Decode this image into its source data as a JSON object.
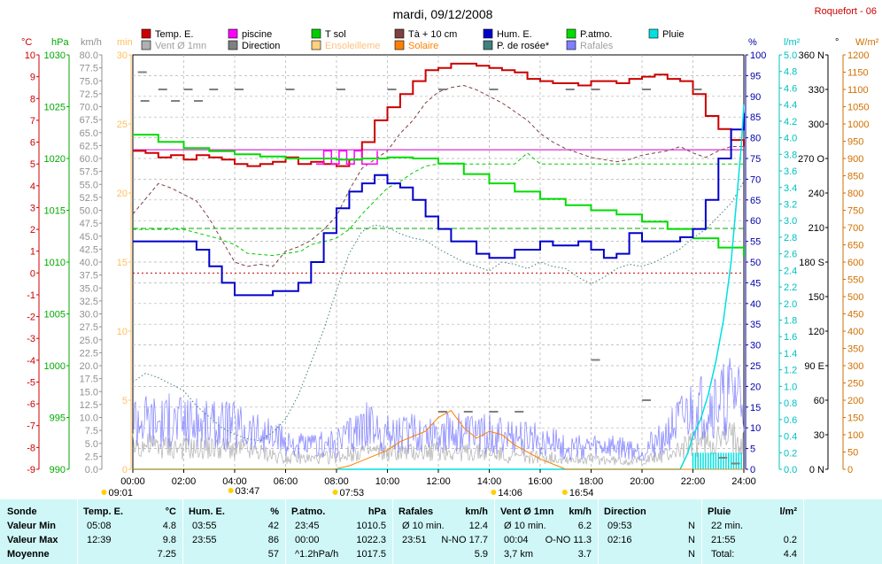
{
  "title": "mardi, 09/12/2008",
  "site": "Roquefort - 06",
  "legend": [
    {
      "label": "Temp. E.",
      "color": "#cc0000",
      "row": 0,
      "col": 0
    },
    {
      "label": "piscine",
      "color": "#ff00ff",
      "row": 0,
      "col": 1
    },
    {
      "label": "T sol",
      "color": "#00cc00",
      "row": 0,
      "col": 2
    },
    {
      "label": "Tà + 10 cm",
      "color": "#804040",
      "row": 0,
      "col": 3
    },
    {
      "label": "Hum. E.",
      "color": "#0000cc",
      "row": 0,
      "col": 4
    },
    {
      "label": "P.atmo.",
      "color": "#00dd00",
      "row": 0,
      "col": 5
    },
    {
      "label": "Pluie",
      "color": "#00e0e0",
      "row": 0,
      "col": 6
    },
    {
      "label": "Vent Ø 1mn",
      "color": "#b0b0b0",
      "row": 1,
      "col": 0
    },
    {
      "label": "Direction",
      "color": "#808080",
      "row": 1,
      "col": 1
    },
    {
      "label": "Ensoleilleme",
      "color": "#ffd080",
      "row": 1,
      "col": 2
    },
    {
      "label": "Solaire",
      "color": "#ff8000",
      "row": 1,
      "col": 3
    },
    {
      "label": "P. de rosée*",
      "color": "#408080",
      "row": 1,
      "col": 4
    },
    {
      "label": "Rafales",
      "color": "#8080ff",
      "row": 1,
      "col": 5
    }
  ],
  "axes": {
    "temp": {
      "unit": "°C",
      "color": "#cc0000",
      "min": -9,
      "max": 10,
      "step": 1
    },
    "pressure": {
      "unit": "hPa",
      "color": "#00aa00",
      "min": 990,
      "max": 1030,
      "step": 5
    },
    "wind": {
      "unit": "km/h",
      "color": "#909090",
      "min": 0,
      "max": 80,
      "step": 2.5
    },
    "minutes": {
      "unit": "min",
      "color": "#ffc060",
      "min": 0,
      "max": 30,
      "step": 5
    },
    "humidity": {
      "unit": "%",
      "color": "#0000aa",
      "min": 0,
      "max": 100,
      "step": 5
    },
    "rain": {
      "unit": "l/m²",
      "color": "#00c0c0",
      "min": 0,
      "max": 5,
      "step": 0.2
    },
    "direction": {
      "unit": "°",
      "color": "#000000",
      "min": 0,
      "max": 360,
      "step": 30,
      "labels": {
        "0": "N",
        "90": "E",
        "180": "S",
        "270": "O",
        "360": "N"
      }
    },
    "solar": {
      "unit": "W/m²",
      "color": "#d07000",
      "min": 0,
      "max": 1200,
      "step": 50
    }
  },
  "x_ticks": [
    "00:00",
    "02:00",
    "04:00",
    "06:00",
    "08:00",
    "10:00",
    "12:00",
    "14:00",
    "16:00",
    "18:00",
    "20:00",
    "22:00",
    "24:00"
  ],
  "sun_marks": [
    {
      "label": "09:01",
      "hour": -1.2,
      "row": "below"
    },
    {
      "label": "03:47",
      "hour": 3.78,
      "row": "above"
    },
    {
      "label": "07:53",
      "hour": 7.88,
      "row": "below"
    },
    {
      "label": "14:06",
      "hour": 14.1,
      "row": "below"
    },
    {
      "label": "16:54",
      "hour": 16.9,
      "row": "below"
    }
  ],
  "chart_data": {
    "type": "line",
    "title": "mardi, 09/12/2008",
    "x_unit": "hour",
    "xlim": [
      0,
      24
    ],
    "grid": true,
    "reference_lines": [
      {
        "axis": "temp",
        "value": 0,
        "color": "#cc0000",
        "style": "dotted"
      },
      {
        "axis": "pressure",
        "value": 1013.25,
        "color": "#00aa00",
        "style": "dashed"
      },
      {
        "axis": "temp",
        "value": 5.65,
        "color": "#cc00cc",
        "style": "solid"
      }
    ],
    "series": [
      {
        "name": "Temp. E.",
        "axis": "temp",
        "color": "#cc0000",
        "width": 2,
        "style": "step",
        "x": [
          0,
          0.5,
          1,
          1.5,
          2,
          2.5,
          3,
          3.5,
          4,
          4.5,
          5,
          5.5,
          6,
          6.5,
          7,
          7.5,
          8,
          8.5,
          9,
          9.5,
          10,
          10.5,
          11,
          11.5,
          12,
          12.5,
          13,
          13.5,
          14,
          14.5,
          15,
          15.5,
          16,
          16.5,
          17,
          17.5,
          18,
          18.5,
          19,
          19.5,
          20,
          20.5,
          21,
          21.5,
          22,
          22.5,
          23,
          23.5,
          24
        ],
        "y": [
          5.6,
          5.5,
          5.3,
          5.4,
          5.2,
          5.4,
          5.3,
          5.2,
          5.0,
          4.9,
          5.0,
          5.1,
          5.3,
          5.0,
          5.1,
          5.0,
          4.9,
          5.2,
          6.0,
          7.0,
          7.6,
          8.2,
          8.8,
          9.3,
          9.4,
          9.6,
          9.6,
          9.5,
          9.4,
          9.3,
          9.2,
          8.9,
          8.8,
          8.7,
          8.7,
          8.6,
          8.8,
          8.8,
          8.7,
          8.9,
          9.0,
          9.1,
          8.9,
          8.8,
          8.2,
          7.2,
          6.6,
          6.1,
          5.8
        ]
      },
      {
        "name": "Tà + 10 cm",
        "axis": "temp",
        "color": "#804040",
        "width": 1,
        "style": "dashed",
        "x": [
          0,
          0.5,
          1,
          1.5,
          2,
          2.5,
          3,
          3.5,
          4,
          4.5,
          5,
          5.5,
          6,
          6.5,
          7,
          7.5,
          8,
          8.5,
          9,
          9.5,
          10,
          10.5,
          11,
          11.5,
          12,
          12.5,
          13,
          13.5,
          14,
          14.5,
          15,
          15.5,
          16,
          16.5,
          17,
          17.5,
          18,
          18.5,
          19,
          19.5,
          20,
          20.5,
          21,
          21.5,
          22,
          22.5,
          23,
          23.5,
          24
        ],
        "y": [
          2.7,
          3.4,
          4.1,
          3.9,
          3.6,
          3.3,
          2.5,
          1.5,
          0.5,
          0.3,
          0.4,
          0.3,
          1.0,
          1.2,
          1.5,
          2.0,
          2.6,
          3.8,
          4.8,
          5.2,
          5.6,
          6.4,
          7.0,
          7.8,
          8.3,
          8.5,
          8.6,
          8.4,
          8.1,
          7.8,
          7.4,
          7.0,
          6.4,
          6.0,
          5.7,
          5.5,
          5.3,
          5.2,
          5.1,
          5.2,
          5.4,
          5.5,
          5.6,
          5.8,
          5.5,
          5.3,
          5.6,
          5.8,
          5.8
        ]
      },
      {
        "name": "piscine",
        "axis": "temp",
        "color": "#ff00ff",
        "width": 1.5,
        "style": "step",
        "x": [
          7.2,
          7.5,
          7.8,
          8.1,
          8.4,
          8.7,
          9.0,
          9.3,
          9.6
        ],
        "y": [
          5.0,
          5.6,
          5.0,
          5.6,
          5.0,
          5.6,
          5.0,
          5.0,
          5.6
        ]
      },
      {
        "name": "T sol",
        "axis": "temp",
        "color": "#00cc00",
        "width": 1,
        "style": "dashed",
        "x": [
          0,
          2,
          3.3,
          4,
          4.5,
          5.5,
          6.6,
          7,
          7.7,
          8,
          8.5,
          9,
          9.5,
          10,
          10.5,
          11,
          11.5,
          12,
          14,
          15,
          15.5,
          16,
          24
        ],
        "y": [
          2.0,
          2.0,
          1.6,
          1.3,
          0.9,
          0.8,
          1.0,
          1.3,
          1.5,
          1.6,
          2.0,
          2.7,
          3.3,
          3.9,
          4.2,
          4.6,
          4.9,
          5.0,
          5.0,
          5.0,
          5.5,
          5.0,
          5.0
        ]
      },
      {
        "name": "P. de rosée*",
        "axis": "temp",
        "color": "#408080",
        "width": 1,
        "style": "dotted",
        "x": [
          0,
          0.5,
          1,
          1.5,
          2,
          2.5,
          3,
          3.5,
          4,
          4.5,
          5,
          5.5,
          6,
          6.5,
          7,
          7.5,
          8,
          8.5,
          9,
          9.5,
          10,
          10.5,
          11,
          11.5,
          12,
          12.5,
          13,
          13.5,
          14,
          14.5,
          15,
          15.5,
          16,
          16.5,
          17,
          17.5,
          18,
          18.5,
          19,
          19.5,
          20,
          20.5,
          21,
          21.5,
          22,
          22.5,
          23,
          23.5,
          24
        ],
        "y": [
          -5.0,
          -4.6,
          -4.8,
          -5.1,
          -5.4,
          -6.1,
          -6.6,
          -7.1,
          -7.4,
          -7.6,
          -7.7,
          -7.3,
          -6.7,
          -5.6,
          -4.1,
          -2.6,
          -0.8,
          0.9,
          1.9,
          2.2,
          2.1,
          1.8,
          1.6,
          1.5,
          1.1,
          0.8,
          0.5,
          0.3,
          0.1,
          0.5,
          0.4,
          0.2,
          0.5,
          0.3,
          0.2,
          -0.2,
          -0.5,
          -0.2,
          0.2,
          0.4,
          0.3,
          0.5,
          0.8,
          1.1,
          1.6,
          2.0,
          2.6,
          3.2,
          4.2
        ]
      },
      {
        "name": "P.atmo.",
        "axis": "pressure",
        "color": "#00dd00",
        "width": 2,
        "style": "step",
        "x": [
          0,
          1,
          2,
          3,
          4,
          5,
          6,
          7,
          8,
          9,
          10,
          11,
          12,
          13,
          14,
          15,
          16,
          17,
          18,
          19,
          20,
          21,
          22,
          23,
          24
        ],
        "y": [
          1022.3,
          1021.6,
          1021.0,
          1020.7,
          1020.4,
          1020.2,
          1020.0,
          1020.0,
          1019.9,
          1020.0,
          1020.1,
          1020.0,
          1019.5,
          1018.5,
          1017.6,
          1016.8,
          1016.1,
          1015.5,
          1015.0,
          1014.6,
          1013.9,
          1013.2,
          1012.3,
          1011.4,
          1010.5
        ]
      },
      {
        "name": "Hum. E.",
        "axis": "humidity",
        "color": "#0000cc",
        "width": 2,
        "style": "step",
        "x": [
          0,
          0.5,
          1,
          1.5,
          2,
          2.5,
          3,
          3.5,
          4,
          4.5,
          5,
          5.5,
          6,
          6.5,
          7,
          7.5,
          8,
          8.5,
          9,
          9.5,
          10,
          10.5,
          11,
          11.5,
          12,
          12.5,
          13,
          13.5,
          14,
          14.5,
          15,
          15.5,
          16,
          16.5,
          17,
          17.5,
          18,
          18.5,
          19,
          19.5,
          20,
          20.5,
          21,
          21.5,
          22,
          22.5,
          23,
          23.5,
          24
        ],
        "y": [
          55,
          55,
          55,
          55,
          55,
          53,
          49,
          45,
          42,
          42,
          42,
          43,
          43,
          45,
          50,
          57,
          63,
          67,
          69,
          71,
          69,
          68,
          65,
          61,
          58,
          55,
          55,
          52,
          51,
          51,
          53,
          53,
          55,
          54,
          54,
          55,
          53,
          51,
          52,
          57,
          55,
          55,
          55,
          56,
          58,
          65,
          75,
          82,
          86
        ]
      },
      {
        "name": "Pluie",
        "axis": "rain",
        "color": "#00e0e0",
        "width": 1.5,
        "style": "line",
        "x": [
          0,
          21.5,
          21.8,
          22,
          22.3,
          22.6,
          22.9,
          23.2,
          23.5,
          23.7,
          23.9,
          24
        ],
        "y": [
          0,
          0,
          0.2,
          0.4,
          0.6,
          0.9,
          1.3,
          1.8,
          2.5,
          3.2,
          3.9,
          4.4
        ]
      },
      {
        "name": "Solaire",
        "axis": "solar",
        "color": "#ff8000",
        "width": 1,
        "style": "line",
        "x": [
          0,
          7.9,
          8.5,
          9,
          9.5,
          10,
          10.5,
          11,
          11.5,
          12,
          12.5,
          13,
          13.5,
          14,
          14.5,
          15,
          15.5,
          16,
          16.5,
          17,
          24
        ],
        "y": [
          0,
          0,
          10,
          25,
          40,
          55,
          80,
          95,
          110,
          150,
          170,
          120,
          90,
          110,
          100,
          70,
          50,
          30,
          15,
          0,
          0
        ]
      },
      {
        "name": "Rafales",
        "axis": "wind",
        "color": "#8080ff",
        "width": 1,
        "style": "line",
        "x": [
          0,
          1,
          2,
          3,
          4,
          5,
          6,
          7,
          8,
          9,
          10,
          11,
          12,
          13,
          14,
          15,
          16,
          17,
          18,
          19,
          20,
          21,
          22,
          23,
          24
        ],
        "y": [
          12,
          11,
          11,
          10,
          10,
          8,
          6,
          5,
          6,
          10,
          8,
          8,
          9,
          8,
          8,
          7,
          7,
          5,
          5,
          5,
          4,
          8,
          13,
          15,
          17.7
        ]
      },
      {
        "name": "Vent Ø 1mn",
        "axis": "wind",
        "color": "#b0b0b0",
        "width": 1,
        "style": "line",
        "x": [
          0,
          1,
          2,
          3,
          4,
          5,
          6,
          7,
          8,
          9,
          10,
          11,
          12,
          13,
          14,
          15,
          16,
          17,
          18,
          19,
          20,
          21,
          22,
          23,
          24
        ],
        "y": [
          6,
          5.5,
          5,
          5,
          5,
          4,
          3,
          2.5,
          3,
          4.5,
          4,
          4,
          4.5,
          4,
          4,
          3,
          3,
          2.5,
          2.5,
          2,
          2,
          3.5,
          6,
          7,
          8
        ]
      }
    ]
  },
  "stats": {
    "headers": [
      {
        "label": "Sonde",
        "unit": ""
      },
      {
        "label": "Temp. E.",
        "unit": "°C"
      },
      {
        "label": "Hum. E.",
        "unit": "%"
      },
      {
        "label": "P.atmo.",
        "unit": "hPa"
      },
      {
        "label": "Rafales",
        "unit": "km/h"
      },
      {
        "label": "Vent Ø 1mn",
        "unit": "km/h"
      },
      {
        "label": "Direction",
        "unit": ""
      },
      {
        "label": "Pluie",
        "unit": "l/m²"
      }
    ],
    "row_labels": [
      "Valeur Min",
      "Valeur Max",
      "Moyenne"
    ],
    "rows": [
      [
        {
          "a": "05:08",
          "b": "4.8"
        },
        {
          "a": "03:55",
          "b": "42"
        },
        {
          "a": "23:45",
          "b": "1010.5"
        },
        {
          "a": "Ø 10 min.",
          "b": "12.4"
        },
        {
          "a": "Ø 10 min.",
          "b": "6.2"
        },
        {
          "a": "09:53",
          "b": "N"
        },
        {
          "a": "22 min.",
          "b": ""
        }
      ],
      [
        {
          "a": "12:39",
          "b": "9.8"
        },
        {
          "a": "23:55",
          "b": "86"
        },
        {
          "a": "00:00",
          "b": "1022.3"
        },
        {
          "a": "23:51",
          "b": "N-NO 17.7"
        },
        {
          "a": "00:04",
          "b": "O-NO 11.3"
        },
        {
          "a": "02:16",
          "b": "N"
        },
        {
          "a": "21:55",
          "b": "0.2"
        }
      ],
      [
        {
          "a": "",
          "b": "7.25"
        },
        {
          "a": "",
          "b": "57"
        },
        {
          "a": "^1.2hPa/h",
          "b": "1017.5"
        },
        {
          "a": "",
          "b": "5.9"
        },
        {
          "a": "3,7 km",
          "b": "3.7"
        },
        {
          "a": "",
          "b": "N"
        },
        {
          "a": "Total:",
          "b": "4.4"
        }
      ]
    ]
  }
}
